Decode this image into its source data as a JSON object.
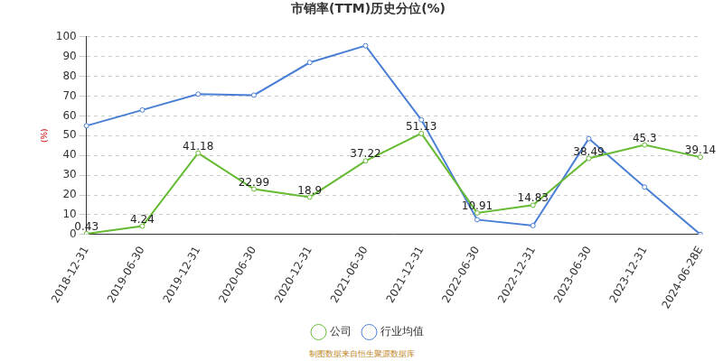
{
  "chart_data": {
    "type": "line",
    "title": "市销率(TTM)历史分位(%)",
    "y_label": "(%)",
    "source": "制图数据来自恒生聚源数据库",
    "categories": [
      "2018-12-31",
      "2019-06-30",
      "2019-12-31",
      "2020-06-30",
      "2020-12-31",
      "2021-06-30",
      "2021-12-31",
      "2022-06-30",
      "2022-12-31",
      "2023-06-30",
      "2023-12-31",
      "2024-06-28E"
    ],
    "series": [
      {
        "name": "公司",
        "color": "#66bb33",
        "marker": "circle",
        "line_style": "solid",
        "data_labels": true,
        "values": [
          0.43,
          4.24,
          41.18,
          22.99,
          18.9,
          37.22,
          51.13,
          10.91,
          14.83,
          38.49,
          45.3,
          39.14
        ]
      },
      {
        "name": "行业均值",
        "color": "#4a7fd6",
        "marker": "circle",
        "line_style": "solid",
        "data_labels": false,
        "values": [
          55,
          63,
          71,
          70.5,
          87,
          95.5,
          58,
          7.5,
          4.5,
          48.5,
          24,
          0
        ]
      }
    ],
    "ylim": [
      0,
      100
    ],
    "yticks": [
      0,
      10,
      20,
      30,
      40,
      50,
      60,
      70,
      80,
      90,
      100
    ],
    "grid": true,
    "legend": "bottom"
  }
}
